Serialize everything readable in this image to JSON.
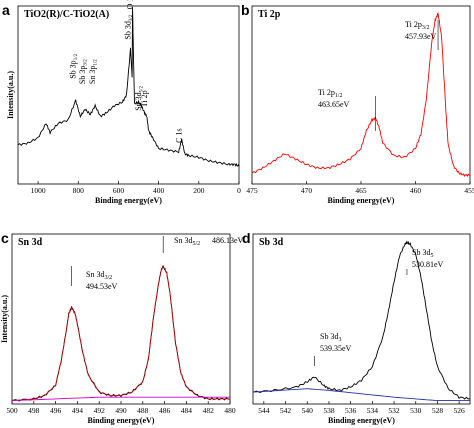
{
  "chart_data": [
    {
      "id": "a",
      "type": "line",
      "panel_label": "a",
      "title": "TiO2(R)/C-TiO2(A)",
      "xlabel": "Binding energy(eV)",
      "ylabel": "Intensity(a.u.)",
      "xlim": [
        1100,
        0
      ],
      "ylim": [
        0,
        100
      ],
      "xticks": [
        1000,
        800,
        600,
        400,
        200,
        0
      ],
      "color": "#000000",
      "annotations": [
        {
          "text": "O 1s",
          "x": 530,
          "y": 97
        },
        {
          "text": "Sb 3d3/2",
          "x": 540,
          "y": 80
        },
        {
          "text": "Sb 3p1/2",
          "x": 813,
          "y": 58
        },
        {
          "text": "Sb 3p3/2",
          "x": 766,
          "y": 55
        },
        {
          "text": "Sn 3p1/2",
          "x": 716,
          "y": 55
        },
        {
          "text": "Ti 2p",
          "x": 459,
          "y": 42
        },
        {
          "text": "Sn 3d5/2",
          "x": 487,
          "y": 40
        },
        {
          "text": "C 1s",
          "x": 285,
          "y": 22
        }
      ],
      "series": [
        {
          "x": [
            1100,
            1050,
            1000,
            960,
            940,
            900,
            850,
            813,
            790,
            766,
            740,
            716,
            690,
            660,
            620,
            580,
            560,
            540,
            532,
            530,
            525,
            520,
            500,
            487,
            470,
            459,
            450,
            430,
            400,
            350,
            300,
            285,
            270,
            250,
            200,
            150,
            100,
            50,
            20,
            0
          ],
          "y": [
            22,
            23,
            26,
            34,
            29,
            34,
            36,
            47,
            38,
            42,
            39,
            44,
            38,
            40,
            44,
            46,
            50,
            76,
            60,
            100,
            70,
            45,
            46,
            44,
            40,
            38,
            30,
            26,
            20,
            19,
            18,
            25,
            17,
            16,
            15,
            13,
            12,
            11,
            11,
            10
          ]
        }
      ]
    },
    {
      "id": "b",
      "type": "line",
      "panel_label": "b",
      "title": "Ti 2p",
      "xlabel": "Binding energy(eV)",
      "ylabel": "",
      "xlim": [
        475,
        455
      ],
      "ylim": [
        0,
        100
      ],
      "xticks": [
        475,
        470,
        465,
        460,
        455
      ],
      "color": "#ff0000",
      "annotations": [
        {
          "label": "Ti 2p1/2",
          "value": "463.65eV",
          "x": 463.65
        },
        {
          "label": "Ti 2p3/2",
          "value": "457.93eV",
          "x": 457.93
        }
      ],
      "series": [
        {
          "x": [
            475,
            474,
            473,
            472,
            471,
            470,
            469,
            468,
            467,
            466,
            465,
            464.5,
            464,
            463.65,
            463.3,
            463,
            462,
            461,
            460,
            459.5,
            459,
            458.5,
            458.2,
            457.93,
            457.6,
            457.2,
            457,
            456.5,
            456,
            455.5,
            455
          ],
          "y": [
            6,
            9,
            13,
            17,
            14,
            11,
            9,
            9,
            11,
            14,
            20,
            30,
            36,
            37,
            31,
            23,
            16,
            15,
            20,
            28,
            48,
            80,
            92,
            96,
            82,
            40,
            22,
            10,
            6,
            5,
            5
          ]
        }
      ]
    },
    {
      "id": "c",
      "type": "line",
      "panel_label": "c",
      "title": "Sn 3d",
      "xlabel": "Binding energy(eV)",
      "ylabel": "Intensity(a.u.)",
      "xlim": [
        500,
        480
      ],
      "ylim": [
        0,
        100
      ],
      "xticks": [
        500,
        498,
        496,
        494,
        492,
        490,
        488,
        486,
        484,
        482,
        480
      ],
      "annotations": [
        {
          "label": "Sn 3d3/2",
          "value": "494.53eV",
          "x": 494.53
        },
        {
          "label": "Sn 3d5/2",
          "value": "486.13eV",
          "x": 486.13
        }
      ],
      "series": [
        {
          "name": "raw",
          "color": "#000000",
          "x": [
            500,
            498,
            497,
            496,
            495.5,
            495,
            494.8,
            494.53,
            494.2,
            494,
            493.5,
            493,
            492,
            491,
            490,
            489,
            488,
            487.5,
            487,
            486.5,
            486.3,
            486.13,
            485.8,
            485.5,
            485,
            484.5,
            484,
            483,
            482,
            481,
            480
          ],
          "y": [
            2,
            3,
            5,
            11,
            25,
            44,
            53,
            57,
            53,
            47,
            30,
            17,
            7,
            5,
            5,
            7,
            13,
            26,
            52,
            73,
            79,
            81,
            77,
            65,
            36,
            18,
            10,
            5,
            3,
            3,
            3
          ]
        },
        {
          "name": "fit",
          "color": "#cc0000",
          "x": [
            500,
            498,
            497,
            496,
            495.5,
            495,
            494.8,
            494.53,
            494.2,
            494,
            493.5,
            493,
            492,
            491,
            490,
            489,
            488,
            487.5,
            487,
            486.5,
            486.3,
            486.13,
            485.8,
            485.5,
            485,
            484.5,
            484,
            483,
            482,
            481,
            480
          ],
          "y": [
            2,
            3,
            5,
            11,
            25,
            44,
            53,
            57,
            53,
            47,
            30,
            17,
            7,
            5,
            5,
            7,
            13,
            26,
            52,
            73,
            79,
            81,
            77,
            65,
            36,
            18,
            10,
            5,
            3,
            3,
            3
          ]
        },
        {
          "name": "background",
          "color": "#cc00cc",
          "x": [
            500,
            496,
            492,
            490,
            488,
            484,
            480
          ],
          "y": [
            2,
            3,
            4,
            4,
            4,
            4,
            4
          ]
        }
      ]
    },
    {
      "id": "d",
      "type": "line",
      "panel_label": "d",
      "title": "Sb 3d",
      "xlabel": "Binding energy(eV)",
      "ylabel": "",
      "xlim": [
        545,
        525
      ],
      "ylim": [
        0,
        100
      ],
      "xticks": [
        544,
        542,
        540,
        538,
        536,
        534,
        532,
        530,
        528,
        526
      ],
      "annotations": [
        {
          "label": "Sb 3d3",
          "value": "539.35eV",
          "x": 539.35
        },
        {
          "label": "Sb 3d5",
          "value": "530.81eV",
          "x": 530.81
        }
      ],
      "series": [
        {
          "name": "raw",
          "color": "#000000",
          "x": [
            545,
            543,
            541,
            540,
            539.35,
            538.5,
            538,
            537,
            536,
            535,
            534,
            533,
            532.5,
            532,
            531.5,
            531,
            530.81,
            530.5,
            530,
            529.5,
            529,
            528.5,
            528,
            527,
            526,
            525
          ],
          "y": [
            7,
            8,
            10,
            13,
            16,
            11,
            9,
            8,
            10,
            14,
            22,
            40,
            55,
            72,
            87,
            94,
            95,
            94,
            88,
            74,
            55,
            36,
            22,
            9,
            4,
            3
          ]
        },
        {
          "name": "background",
          "color": "#2233aa",
          "x": [
            545,
            540,
            538,
            535,
            532,
            530,
            528,
            526,
            525
          ],
          "y": [
            7,
            9,
            8,
            6,
            4,
            3,
            2,
            2,
            2
          ]
        }
      ]
    }
  ]
}
